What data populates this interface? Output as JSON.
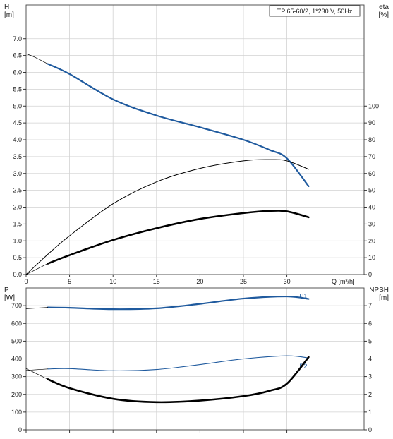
{
  "title": "TP 65-60/2, 1*230 V, 50Hz",
  "colors": {
    "blue": "#1f5a9e",
    "black": "#000000",
    "grid": "#d2d2d2"
  },
  "chart_data": [
    {
      "id": "top",
      "type": "line",
      "grid": true,
      "y_left_label": [
        "H",
        "[m]"
      ],
      "y_right_label": [
        "eta",
        "[%]"
      ],
      "x_label": "Q [m³/h]",
      "xlim": [
        0,
        35
      ],
      "ylim_left": [
        0,
        8
      ],
      "ylim_right": [
        0,
        160
      ],
      "x_ticks": [
        "0",
        "5",
        "10",
        "15",
        "20",
        "25",
        "30"
      ],
      "y_left_ticks": [
        "0.0",
        "0.5",
        "1.0",
        "1.5",
        "2.0",
        "2.5",
        "3.0",
        "3.5",
        "4.0",
        "4.5",
        "5.0",
        "5.5",
        "6.0",
        "6.5",
        "7.0"
      ],
      "y_right_ticks": [
        "0",
        "10",
        "20",
        "30",
        "40",
        "50",
        "60",
        "70",
        "80",
        "90",
        "100"
      ],
      "series": [
        {
          "kind": "H",
          "axis": "left",
          "color": "blue",
          "width": 2.2,
          "x": [
            2.5,
            5,
            10,
            15,
            20,
            25,
            28,
            30,
            32.5
          ],
          "y": [
            6.25,
            5.95,
            5.2,
            4.72,
            4.37,
            4.0,
            3.7,
            3.45,
            2.62
          ]
        },
        {
          "kind": "H-extension",
          "axis": "left",
          "color": "black",
          "width": 0.7,
          "x": [
            0,
            1,
            2.5
          ],
          "y": [
            6.55,
            6.45,
            6.25
          ]
        },
        {
          "kind": "eta",
          "axis": "right",
          "color": "black",
          "width": 1.0,
          "x": [
            0,
            2.5,
            5,
            10,
            15,
            20,
            25,
            28,
            30,
            32.5
          ],
          "y": [
            0,
            12,
            23,
            42,
            55,
            63,
            67.5,
            68.2,
            67.5,
            62.5
          ]
        },
        {
          "kind": "eta-motor",
          "axis": "right",
          "color": "black",
          "width": 2.6,
          "x": [
            2.5,
            5,
            10,
            15,
            20,
            25,
            28,
            30,
            32.5
          ],
          "y": [
            6.5,
            11.5,
            20.5,
            27.5,
            33,
            36.5,
            37.8,
            37.5,
            34
          ]
        },
        {
          "kind": "eta-motor-extension",
          "axis": "right",
          "color": "black",
          "width": 0.7,
          "x": [
            0,
            2.5
          ],
          "y": [
            0,
            6.5
          ]
        }
      ]
    },
    {
      "id": "bottom",
      "type": "line",
      "grid": true,
      "y_left_label": [
        "P",
        "[W]"
      ],
      "y_right_label": [
        "NPSH",
        "[m]"
      ],
      "xlim": [
        0,
        35
      ],
      "ylim_left": [
        0,
        800
      ],
      "ylim_right": [
        0,
        8
      ],
      "y_left_ticks": [
        "0",
        "100",
        "200",
        "300",
        "400",
        "500",
        "600",
        "700"
      ],
      "y_right_ticks": [
        "0",
        "1",
        "2",
        "3",
        "4",
        "5",
        "6",
        "7"
      ],
      "series": [
        {
          "kind": "P1",
          "name": "P1",
          "axis": "left",
          "color": "blue",
          "width": 2.2,
          "x": [
            2.5,
            5,
            10,
            15,
            20,
            25,
            30,
            32.5
          ],
          "y": [
            690,
            688,
            680,
            685,
            710,
            740,
            752,
            738
          ]
        },
        {
          "kind": "P1-extension",
          "axis": "left",
          "color": "black",
          "width": 0.7,
          "x": [
            0,
            2.5
          ],
          "y": [
            683,
            690
          ]
        },
        {
          "kind": "P2",
          "name": "P2",
          "axis": "left",
          "color": "blue",
          "width": 1.1,
          "x": [
            2.5,
            5,
            10,
            15,
            20,
            25,
            30,
            32.5
          ],
          "y": [
            343,
            345,
            333,
            340,
            368,
            400,
            417,
            405
          ]
        },
        {
          "kind": "P2-extension",
          "axis": "left",
          "color": "black",
          "width": 0.7,
          "x": [
            0,
            2.5
          ],
          "y": [
            335,
            343
          ]
        },
        {
          "kind": "NPSH",
          "axis": "right",
          "color": "black",
          "width": 2.6,
          "x": [
            2.5,
            5,
            10,
            15,
            20,
            25,
            28,
            30,
            32.5
          ],
          "y": [
            2.85,
            2.35,
            1.75,
            1.56,
            1.65,
            1.9,
            2.2,
            2.6,
            4.1
          ]
        },
        {
          "kind": "NPSH-extension",
          "axis": "right",
          "color": "black",
          "width": 0.7,
          "x": [
            0,
            2.5
          ],
          "y": [
            3.45,
            2.85
          ]
        }
      ]
    }
  ]
}
